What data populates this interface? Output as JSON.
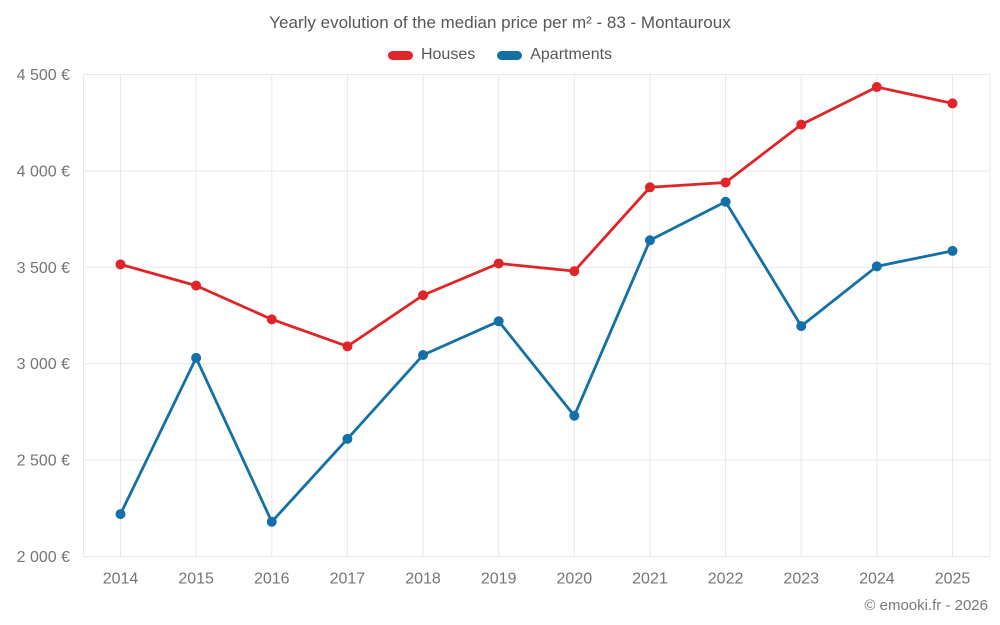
{
  "chart_data": {
    "type": "line",
    "title": "Yearly evolution of the median price per m² - 83 - Montauroux",
    "xlabel": "",
    "ylabel": "",
    "categories": [
      "2014",
      "2015",
      "2016",
      "2017",
      "2018",
      "2019",
      "2020",
      "2021",
      "2022",
      "2023",
      "2024",
      "2025"
    ],
    "series": [
      {
        "name": "Houses",
        "color": "#e02529",
        "values": [
          3515,
          3405,
          3230,
          3090,
          3355,
          3520,
          3480,
          3915,
          3940,
          4240,
          4435,
          4350
        ]
      },
      {
        "name": "Apartments",
        "color": "#1470a8",
        "values": [
          2220,
          3030,
          2180,
          2610,
          3045,
          3220,
          2730,
          3640,
          3840,
          3195,
          3505,
          3585
        ]
      }
    ],
    "ylim": [
      2000,
      4500
    ],
    "y_ticks": [
      {
        "value": 2000,
        "label": "2 000 €"
      },
      {
        "value": 2500,
        "label": "2 500 €"
      },
      {
        "value": 3000,
        "label": "3 000 €"
      },
      {
        "value": 3500,
        "label": "3 500 €"
      },
      {
        "value": 4000,
        "label": "4 000 €"
      },
      {
        "value": 4500,
        "label": "4 500 €"
      }
    ],
    "grid": true,
    "legend_position": "top",
    "marker": "circle",
    "credit": "© emooki.fr - 2026",
    "colors": {
      "grid": "#e8e8e8",
      "tick_label": "#757575",
      "title_text": "#54585b",
      "background": "#ffffff"
    }
  }
}
